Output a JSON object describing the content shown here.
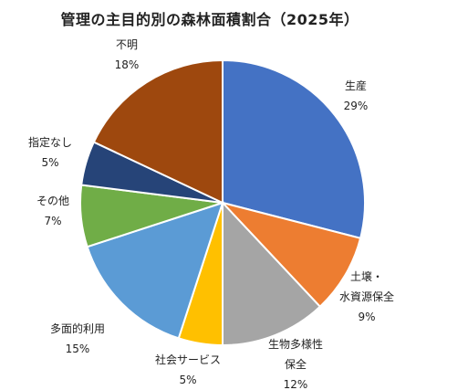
{
  "chart_data": {
    "type": "pie",
    "title": "管理の主目的別の森林面積割合（2025年）",
    "slices": [
      {
        "label": "生産",
        "value": 29,
        "value_label": "29%",
        "color": "#4472C4"
      },
      {
        "label": "土壌・水資源保全",
        "value": 9,
        "value_label": "9%",
        "color": "#ED7D31"
      },
      {
        "label": "生物多様性保全",
        "value": 12,
        "value_label": "12%",
        "color": "#A5A5A5"
      },
      {
        "label": "社会サービス",
        "value": 5,
        "value_label": "5%",
        "color": "#FFC000"
      },
      {
        "label": "多面的利用",
        "value": 15,
        "value_label": "15%",
        "color": "#5B9BD5"
      },
      {
        "label": "その他",
        "value": 7,
        "value_label": "7%",
        "color": "#70AD47"
      },
      {
        "label": "指定なし",
        "value": 5,
        "value_label": "5%",
        "color": "#264478"
      },
      {
        "label": "不明",
        "value": 18,
        "value_label": "18%",
        "color": "#9E480E"
      }
    ],
    "legend": "none",
    "start": "12 o'clock, clockwise"
  }
}
